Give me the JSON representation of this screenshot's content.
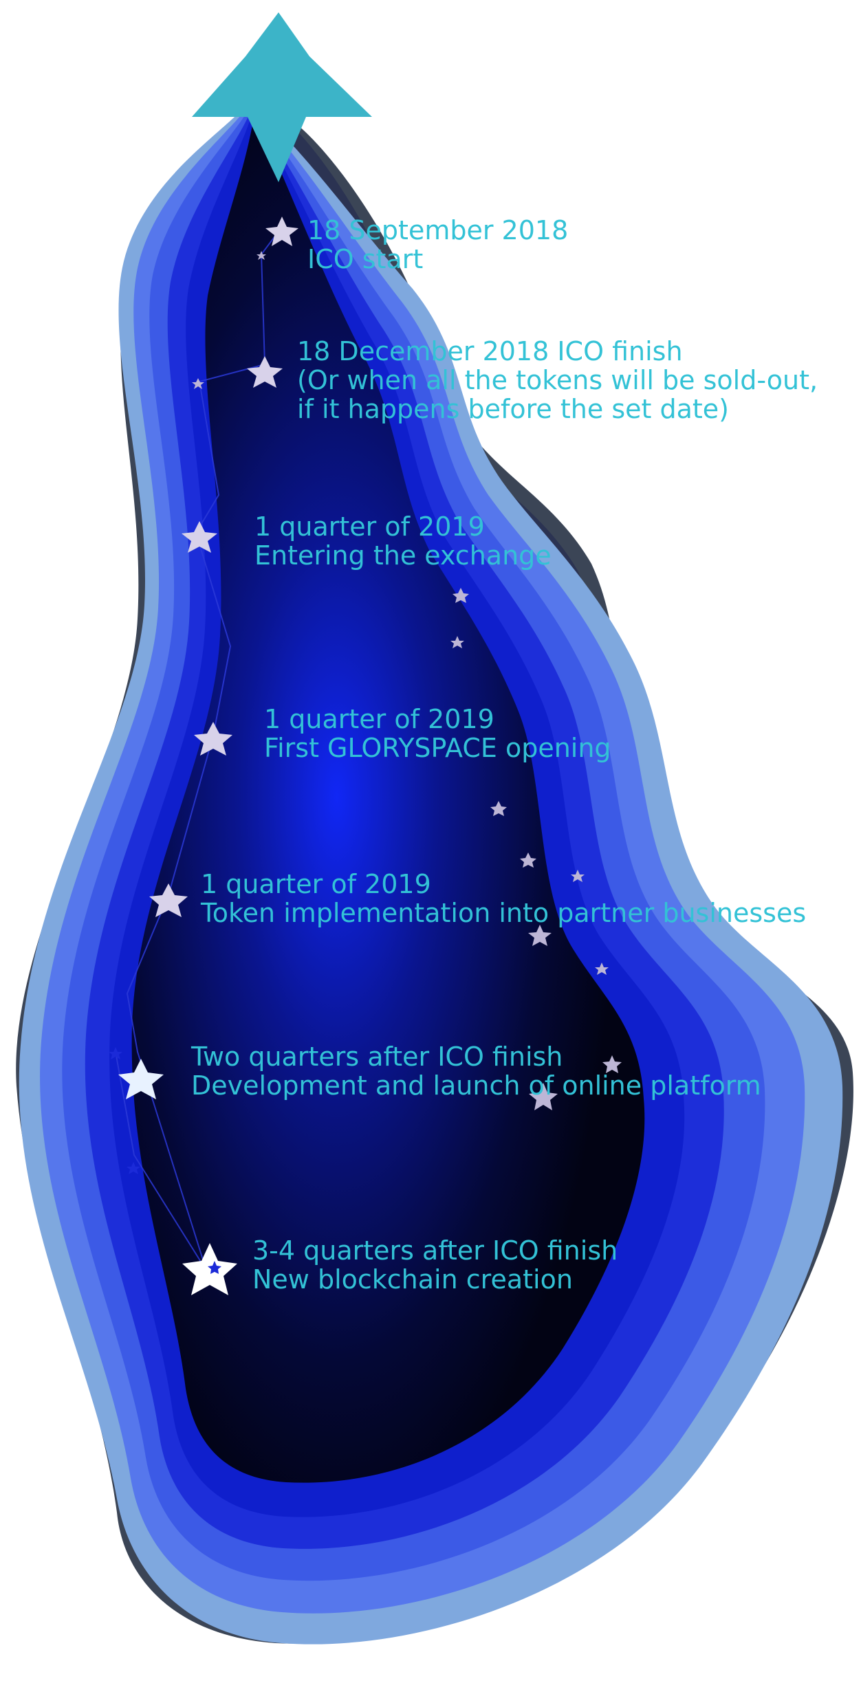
{
  "colors": {
    "text": "#33c2d6",
    "top_star": "#3cb4c8",
    "layers": [
      "#7fa8de",
      "#5677ec",
      "#3c5ae6",
      "#1d2ed9",
      "#1020d8",
      "#0f1fcc"
    ],
    "right_shadow_layers": [
      "#30394e",
      "#2a3350",
      "#25325a",
      "#1f2a6a"
    ],
    "core_center": "#1127f5",
    "core_edge": "#020314",
    "constellation_line": "#2c39d8",
    "star_light": "#d8d2ea",
    "star_white": "#ffffff",
    "star_blue": "#1b2ad8"
  },
  "icons": {
    "top": "star-icon",
    "milestone": "star-icon",
    "decor": "star-icon"
  },
  "milestones": [
    {
      "lines": [
        "18 September 2018",
        "ICO start"
      ]
    },
    {
      "lines": [
        "18 December 2018 ICO finish",
        "(Or when all the tokens will be sold-out,",
        " if it happens before the set date)"
      ]
    },
    {
      "lines": [
        "1 quarter of 2019",
        "Entering the exchange"
      ]
    },
    {
      "lines": [
        "1 quarter of 2019",
        "First GLORYSPACE opening"
      ]
    },
    {
      "lines": [
        "1 quarter of 2019",
        "Token implementation into partner businesses"
      ]
    },
    {
      "lines": [
        "Two quarters after ICO finish",
        "Development and launch of online platform"
      ]
    },
    {
      "lines": [
        "3-4 quarters after ICO finish",
        "New blockchain creation"
      ]
    }
  ]
}
